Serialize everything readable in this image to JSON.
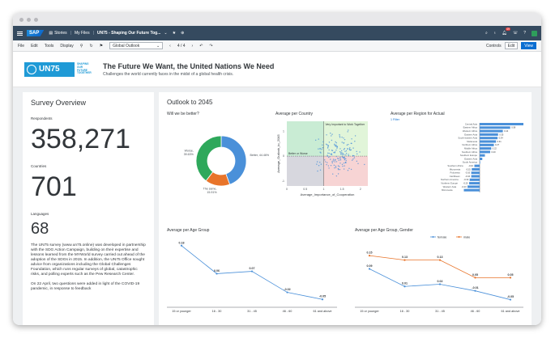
{
  "shell": {
    "stories": "Stories",
    "myfiles": "My Files",
    "story_title": "UN75 - Shaping Our Future Tog...",
    "notif_count": "49"
  },
  "toolbar": {
    "file": "File",
    "edit": "Edit",
    "tools": "Tools",
    "display": "Display",
    "page_select": "Global Outlook",
    "page_nav": "4 / 4",
    "controls": "Controls",
    "edit_btn": "Edit",
    "view_btn": "View"
  },
  "header": {
    "logo_text": "UN75",
    "logo_tag": "SHAPING OUR FUTURE TOGETHER",
    "logo_sub": "2020 AND BEYOND",
    "title": "The Future We Want, the United Nations We Need",
    "subtitle": "Challenges the world currently faces in the midst of a global health crisis."
  },
  "overview": {
    "title": "Survey Overview",
    "respondents_label": "Respondents",
    "respondents_value": "358,271",
    "countries_label": "Countries",
    "countries_value": "701",
    "languages_label": "Languages",
    "languages_value": "68",
    "description": "The UN75 survey (www.un75.online) was developed in partnership with the SDG Action Campaign, building on their expertise and lessons learned from the MYWorld survey carried out ahead of the adoption of the SDGs in 2015. In addition, the UN75 Office sought advice from organizations including the Global Challenges Foundation, which runs regular surveys of global, catastrophic risks, and polling experts such as the Pew Research Center.",
    "description2": "On 22 April, two questions were added in light of the COVID-19 pandemic, in response to feedback"
  },
  "outlook": {
    "title": "Outlook to 2045"
  },
  "chart_data": [
    {
      "type": "pie",
      "title": "Will we be better?",
      "labels": [
        "Better",
        "The same",
        "Worse"
      ],
      "values": [
        44.46,
        15.91,
        39.63
      ],
      "display_labels": [
        "Better, 44.46%",
        "The same, 15.91%",
        "Worse, 39.63%"
      ],
      "colors": [
        "#4a90d9",
        "#e8742a",
        "#2ea85b"
      ]
    },
    {
      "type": "scatter",
      "title": "Average per Country",
      "xlabel": "Average_Importance_of_Cooperation",
      "ylabel": "Average_Outlook_to_2045",
      "xlim": [
        0,
        2.2
      ],
      "ylim": [
        -1.2,
        1.4
      ],
      "xticks": [
        "0",
        "0.5",
        "1",
        "1.5",
        "2"
      ],
      "yticks": [
        "1",
        "0",
        "-1"
      ],
      "quadrant_labels": [
        "Very Important to Work Together",
        "Better or Worse"
      ],
      "threshold_x": 1,
      "threshold_y": 0
    },
    {
      "type": "bar",
      "title": "Average per Region for Actual",
      "filter": "1 Filter",
      "categories": [
        "Central Asia",
        "Eastern Africa",
        "Western Africa",
        "Eastern Asia",
        "South-eastern Asia",
        "Melanesia",
        "Northern Africa",
        "Middle Africa",
        "Southern Africa",
        "Southern Europe",
        "Eastern Asia",
        "South America",
        "Southern Africa",
        "Micronesia",
        "Polynesia",
        "Caribbean",
        "Northern America",
        "Northern Europe",
        "Western Asia",
        "Micronesia"
      ],
      "values": [
        0.93,
        0.58,
        0.44,
        0.35,
        0.34,
        0.31,
        0.27,
        0.22,
        0.2,
        0.1,
        0.05,
        0.01,
        -0.1,
        -0.15,
        -0.16,
        -0.16,
        -0.19,
        -0.2,
        -0.23,
        -0.3
      ],
      "value_labels": [
        "0.93",
        "0.58",
        "0.44",
        "0.35",
        "0.34",
        "0.31",
        "0.27",
        "0.22",
        "0.20",
        "",
        "",
        "",
        "-0.10",
        "-0.15",
        "-0.16",
        "-0.16",
        "-0.19",
        "-0.20",
        "-0.23",
        ""
      ],
      "color": "#4a90d9"
    },
    {
      "type": "line",
      "title": "Average per Age Group",
      "categories": [
        "15 or younger",
        "16 - 30",
        "31 - 45",
        "46 - 60",
        "61 and above"
      ],
      "values": [
        0.18,
        0.06,
        0.07,
        -0.02,
        -0.05
      ],
      "value_labels": [
        "0.18",
        "0.06",
        "0.07",
        "-0.02",
        "-0.05"
      ],
      "color": "#4a90d9"
    },
    {
      "type": "line",
      "title": "Average per Age Group, Gender",
      "categories": [
        "15 or younger",
        "16 - 30",
        "31 - 45",
        "46 - 60",
        "61 and above"
      ],
      "series": [
        {
          "name": "female",
          "values": [
            0.09,
            0.01,
            0.02,
            -0.01,
            -0.05
          ],
          "value_labels": [
            "0.09",
            "0.01",
            "0.02",
            "-0.01",
            "-0.05"
          ],
          "color": "#4a90d9"
        },
        {
          "name": "male",
          "values": [
            0.15,
            0.13,
            0.13,
            0.05,
            0.05
          ],
          "value_labels": [
            "0.15",
            "0.13",
            "0.13",
            "0.05",
            "0.05"
          ],
          "color": "#e8742a"
        }
      ]
    }
  ]
}
